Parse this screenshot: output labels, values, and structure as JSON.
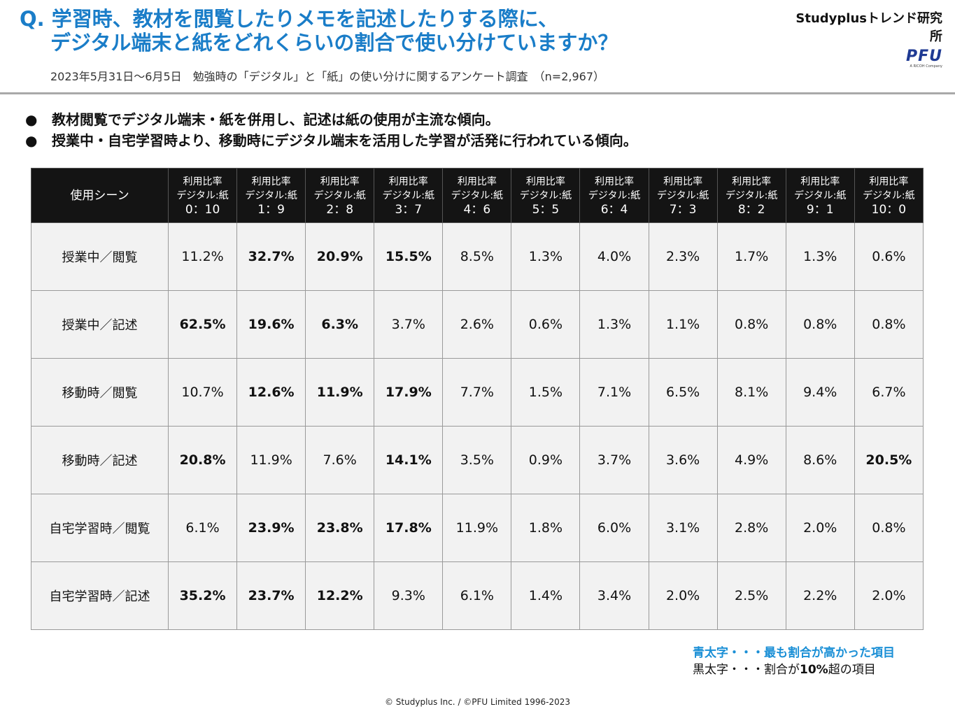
{
  "header": {
    "title_line1": "Q. 学習時、教材を閲覧したりメモを記述したりする際に、",
    "title_line2": "デジタル端末と紙をどれくらいの割合で使い分けていますか？",
    "brand": "Studyplusトレンド研究所",
    "logo_text": "PFU",
    "logo_sub": "A RICOH Company",
    "subtitle": "2023年5月31日～6月5日　勉強時の「デジタル」と「紙」の使い分けに関するアンケート調査　（n=2,967）"
  },
  "bullets": [
    "教材閲覧でデジタル端末・紙を併用し、記述は紙の使用が主流な傾向。",
    "授業中・自宅学習時より、移動時にデジタル端末を活用した学習が活発に行われている傾向。"
  ],
  "bullet_symbol": "●",
  "chart_data": {
    "type": "table",
    "header_scene": "使用シーン",
    "column_line1": "利用比率",
    "column_line2": "デジタル:紙",
    "columns": [
      "0：10",
      "1：9",
      "2：8",
      "3：7",
      "4：6",
      "5：5",
      "6：4",
      "7：3",
      "8：2",
      "9：1",
      "10：0"
    ],
    "rows": [
      {
        "scene": "授業中／閲覧",
        "values": [
          "11.2%",
          "32.7%",
          "20.9%",
          "15.5%",
          "8.5%",
          "1.3%",
          "4.0%",
          "2.3%",
          "1.7%",
          "1.3%",
          "0.6%"
        ],
        "styles": [
          "n",
          "b",
          "k",
          "k",
          "n",
          "n",
          "n",
          "n",
          "n",
          "n",
          "n"
        ]
      },
      {
        "scene": "授業中／記述",
        "values": [
          "62.5%",
          "19.6%",
          "6.3%",
          "3.7%",
          "2.6%",
          "0.6%",
          "1.3%",
          "1.1%",
          "0.8%",
          "0.8%",
          "0.8%"
        ],
        "styles": [
          "b",
          "k",
          "k",
          "n",
          "n",
          "n",
          "n",
          "n",
          "n",
          "n",
          "n"
        ]
      },
      {
        "scene": "移動時／閲覧",
        "values": [
          "10.7%",
          "12.6%",
          "11.9%",
          "17.9%",
          "7.7%",
          "1.5%",
          "7.1%",
          "6.5%",
          "8.1%",
          "9.4%",
          "6.7%"
        ],
        "styles": [
          "n",
          "k",
          "k",
          "b",
          "n",
          "n",
          "n",
          "n",
          "n",
          "n",
          "n"
        ]
      },
      {
        "scene": "移動時／記述",
        "values": [
          "20.8%",
          "11.9%",
          "7.6%",
          "14.1%",
          "3.5%",
          "0.9%",
          "3.7%",
          "3.6%",
          "4.9%",
          "8.6%",
          "20.5%"
        ],
        "styles": [
          "b",
          "n",
          "n",
          "k",
          "n",
          "n",
          "n",
          "n",
          "n",
          "n",
          "k"
        ]
      },
      {
        "scene": "自宅学習時／閲覧",
        "values": [
          "6.1%",
          "23.9%",
          "23.8%",
          "17.8%",
          "11.9%",
          "1.8%",
          "6.0%",
          "3.1%",
          "2.8%",
          "2.0%",
          "0.8%"
        ],
        "styles": [
          "n",
          "b",
          "k",
          "k",
          "n",
          "n",
          "n",
          "n",
          "n",
          "n",
          "n"
        ]
      },
      {
        "scene": "自宅学習時／記述",
        "values": [
          "35.2%",
          "23.7%",
          "12.2%",
          "9.3%",
          "6.1%",
          "1.4%",
          "3.4%",
          "2.0%",
          "2.5%",
          "2.2%",
          "2.0%"
        ],
        "styles": [
          "b",
          "k",
          "k",
          "n",
          "n",
          "n",
          "n",
          "n",
          "n",
          "n",
          "n"
        ]
      }
    ]
  },
  "legend": {
    "blue_note": "青太字・・・最も割合が高かった項目",
    "black_note_prefix": "黒太字・・・割合が",
    "black_note_bold": "10%",
    "black_note_suffix": "超の項目"
  },
  "footer": "© Studyplus Inc. / ©PFU Limited 1996-2023",
  "colors": {
    "title_blue": "#1a7dc8",
    "highlight_blue": "#1a8fd6",
    "header_bg": "#141414",
    "cell_bg": "#f2f2f2"
  }
}
